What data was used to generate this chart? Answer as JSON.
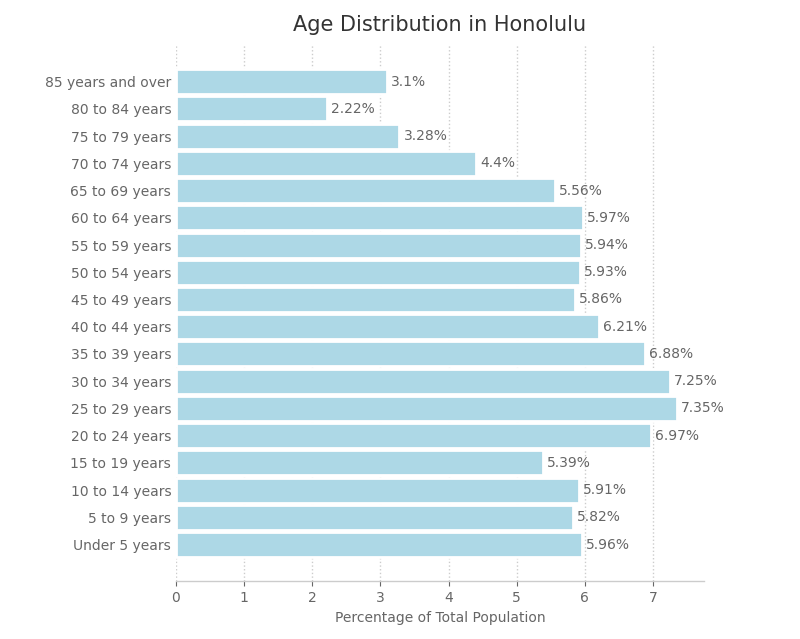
{
  "title": "Age Distribution in Honolulu",
  "xlabel": "Percentage of Total Population",
  "categories": [
    "85 years and over",
    "80 to 84 years",
    "75 to 79 years",
    "70 to 74 years",
    "65 to 69 years",
    "60 to 64 years",
    "55 to 59 years",
    "50 to 54 years",
    "45 to 49 years",
    "40 to 44 years",
    "35 to 39 years",
    "30 to 34 years",
    "25 to 29 years",
    "20 to 24 years",
    "15 to 19 years",
    "10 to 14 years",
    "5 to 9 years",
    "Under 5 years"
  ],
  "values": [
    3.1,
    2.22,
    3.28,
    4.4,
    5.56,
    5.97,
    5.94,
    5.93,
    5.86,
    6.21,
    6.88,
    7.25,
    7.35,
    6.97,
    5.39,
    5.91,
    5.82,
    5.96
  ],
  "labels": [
    "3.1%",
    "2.22%",
    "3.28%",
    "4.4%",
    "5.56%",
    "5.97%",
    "5.94%",
    "5.93%",
    "5.86%",
    "6.21%",
    "6.88%",
    "7.25%",
    "7.35%",
    "6.97%",
    "5.39%",
    "5.91%",
    "5.82%",
    "5.96%"
  ],
  "bar_color": "#ADD8E6",
  "bar_edge_color": "white",
  "background_color": "#ffffff",
  "grid_color": "#cccccc",
  "text_color": "#666666",
  "title_fontsize": 15,
  "label_fontsize": 10,
  "tick_fontsize": 10,
  "xlim": [
    0,
    7.75
  ],
  "xticks": [
    0,
    1,
    2,
    3,
    4,
    5,
    6,
    7
  ]
}
